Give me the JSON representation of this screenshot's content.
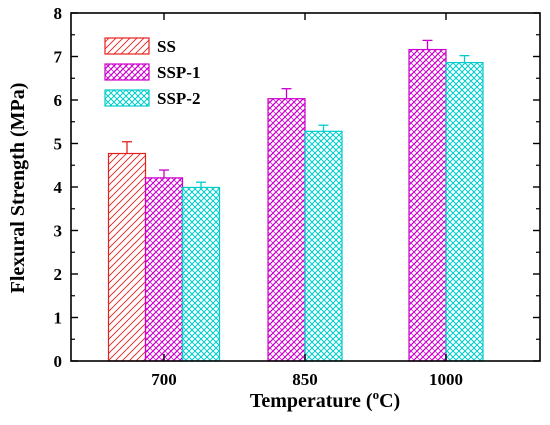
{
  "chart_data": {
    "type": "bar",
    "categories": [
      "700",
      "850",
      "1000"
    ],
    "series": [
      {
        "name": "SS",
        "values": [
          4.77,
          null,
          null
        ],
        "errors": [
          0.27,
          null,
          null
        ],
        "color": "#e8201c",
        "pattern": "diagonal-forward"
      },
      {
        "name": "SSP-1",
        "values": [
          4.21,
          6.03,
          7.16
        ],
        "errors": [
          0.18,
          0.23,
          0.21
        ],
        "color": "#cc00cc",
        "pattern": "diagonal-cross"
      },
      {
        "name": "SSP-2",
        "values": [
          3.99,
          5.28,
          6.86
        ],
        "errors": [
          0.12,
          0.14,
          0.16
        ],
        "color": "#00cccc",
        "pattern": "crosshatch"
      }
    ],
    "xlabel": "Temperature (",
    "xlabel_superscript": "o",
    "xlabel_suffix": "C)",
    "ylabel": "Flexural Strength (MPa)",
    "ylim": [
      0,
      8
    ],
    "yticks": [
      "0",
      "1",
      "2",
      "3",
      "4",
      "5",
      "6",
      "7",
      "8"
    ],
    "grid": false,
    "legend_position": "top-left"
  }
}
